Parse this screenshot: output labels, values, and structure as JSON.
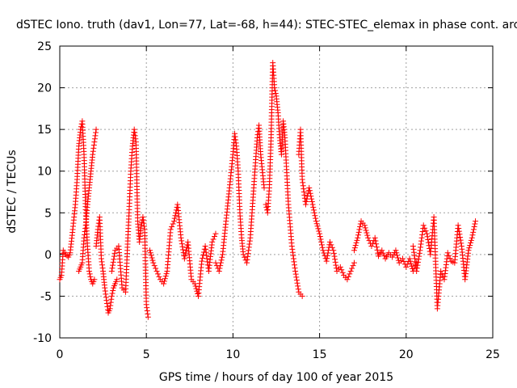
{
  "chart_data": {
    "type": "scatter",
    "title": "dSTEC Iono. truth (dav1, Lon=77, Lat=-68, h=44): STEC-STEC_elemax in phase cont. arc",
    "xlabel": "GPS time / hours of day 100 of year 2015",
    "ylabel": "dSTEC  / TECUs",
    "xlim": [
      0,
      25
    ],
    "ylim": [
      -10,
      25
    ],
    "xticks": [
      "0",
      "5",
      "10",
      "15",
      "20",
      "25"
    ],
    "yticks": [
      "-10",
      "-5",
      "0",
      "5",
      "10",
      "15",
      "20",
      "25"
    ],
    "grid": true,
    "marker": "+",
    "color": "#ff0000",
    "series": [
      {
        "x": [
          0.0,
          0.1,
          0.2,
          0.35,
          0.5,
          0.6,
          0.75,
          0.9,
          1.0,
          1.1,
          1.2,
          1.3,
          1.4,
          1.5,
          1.6,
          1.7,
          1.8,
          1.9,
          2.0
        ],
        "y": [
          -3.0,
          -2.5,
          0.5,
          0.0,
          -0.3,
          0.2,
          3.0,
          6.0,
          9.0,
          13.0,
          15.0,
          16.0,
          12.0,
          5.0,
          1.0,
          -2.0,
          -3.0,
          -3.5,
          -3.0
        ]
      },
      {
        "x": [
          1.1,
          1.2,
          1.3,
          1.4,
          1.5,
          1.6,
          1.7,
          1.8,
          1.9,
          2.0,
          2.1
        ],
        "y": [
          -2.0,
          -1.5,
          -1.0,
          2.0,
          3.5,
          6.0,
          8.0,
          10.0,
          12.0,
          13.5,
          15.0
        ]
      },
      {
        "x": [
          2.1,
          2.2,
          2.3,
          2.4,
          2.5,
          2.6,
          2.7,
          2.8,
          2.9,
          3.0,
          3.1,
          3.2,
          3.3
        ],
        "y": [
          1.0,
          3.0,
          4.5,
          -0.5,
          -2.0,
          -4.0,
          -5.5,
          -7.0,
          -6.5,
          -5.0,
          -4.0,
          -3.5,
          -3.0
        ]
      },
      {
        "x": [
          3.0,
          3.2,
          3.4,
          3.6,
          3.8,
          3.9,
          4.0,
          4.1,
          4.2,
          4.3,
          4.4,
          4.5,
          4.6,
          4.7,
          4.8,
          4.9,
          5.0,
          5.1
        ],
        "y": [
          -2.0,
          0.5,
          1.0,
          -4.0,
          -4.5,
          0.5,
          5.0,
          10.0,
          13.0,
          15.0,
          13.5,
          4.0,
          1.5,
          3.5,
          4.5,
          3.0,
          -6.0,
          -7.5
        ]
      },
      {
        "x": [
          5.2,
          5.4,
          5.6,
          5.8,
          6.0,
          6.2,
          6.4,
          6.6,
          6.8,
          7.0,
          7.2,
          7.4,
          7.6,
          7.8,
          8.0,
          8.2,
          8.4,
          8.6,
          8.8,
          9.0
        ],
        "y": [
          0.5,
          -1.0,
          -2.0,
          -3.0,
          -3.5,
          -2.0,
          3.0,
          4.0,
          6.0,
          2.0,
          -0.5,
          1.5,
          -3.0,
          -3.5,
          -5.0,
          -0.8,
          1.0,
          -2.0,
          1.5,
          2.5
        ]
      },
      {
        "x": [
          9.0,
          9.2,
          9.4,
          9.6,
          9.8,
          10.0,
          10.1,
          10.2,
          10.3,
          10.4,
          10.5,
          10.6,
          10.8,
          11.0,
          11.2,
          11.4,
          11.5,
          11.6,
          11.8
        ],
        "y": [
          -1.0,
          -2.0,
          0.0,
          4.0,
          8.0,
          12.0,
          14.5,
          13.0,
          10.0,
          5.0,
          2.0,
          0.0,
          -1.0,
          2.0,
          8.0,
          14.0,
          15.5,
          12.0,
          8.0
        ]
      },
      {
        "x": [
          11.9,
          12.0,
          12.1,
          12.2,
          12.3,
          12.4,
          12.5,
          12.6,
          12.7,
          12.8,
          12.9,
          13.0,
          13.2,
          13.4,
          13.6,
          13.8,
          14.0
        ],
        "y": [
          6.0,
          5.0,
          8.0,
          14.0,
          23.0,
          20.0,
          19.0,
          17.0,
          14.0,
          12.0,
          16.0,
          14.0,
          6.0,
          1.0,
          -2.0,
          -4.5,
          -5.0
        ]
      },
      {
        "x": [
          13.8,
          13.9,
          14.0,
          14.2,
          14.4,
          14.6,
          14.8,
          15.0,
          15.2,
          15.4,
          15.6,
          15.8,
          16.0,
          16.2,
          16.4,
          16.6,
          16.8,
          17.0
        ],
        "y": [
          12.0,
          15.0,
          9.0,
          6.0,
          8.0,
          6.0,
          4.0,
          2.5,
          0.5,
          -0.8,
          1.5,
          0.5,
          -2.0,
          -1.5,
          -2.5,
          -3.0,
          -2.0,
          -1.0
        ]
      },
      {
        "x": [
          17.0,
          17.2,
          17.4,
          17.6,
          17.8,
          18.0,
          18.2,
          18.4,
          18.6,
          18.8,
          19.0,
          19.2,
          19.4,
          19.6,
          19.8,
          20.0,
          20.2,
          20.4,
          20.6
        ],
        "y": [
          0.5,
          2.0,
          4.0,
          3.5,
          2.0,
          1.0,
          2.0,
          -0.2,
          0.5,
          -0.5,
          0.2,
          -0.3,
          0.5,
          -1.0,
          -0.5,
          -1.5,
          -0.5,
          -2.0,
          -1.0
        ]
      },
      {
        "x": [
          20.4,
          20.6,
          20.8,
          21.0,
          21.2,
          21.4,
          21.6,
          21.8,
          22.0,
          22.2,
          22.4,
          22.6,
          22.8,
          23.0,
          23.2,
          23.4,
          23.6,
          23.8,
          24.0
        ],
        "y": [
          1.0,
          -2.0,
          0.5,
          3.5,
          2.5,
          0.0,
          4.5,
          -6.5,
          -2.0,
          -3.0,
          0.2,
          -0.8,
          -1.0,
          3.5,
          1.0,
          -3.0,
          0.5,
          2.0,
          4.0
        ]
      }
    ]
  }
}
